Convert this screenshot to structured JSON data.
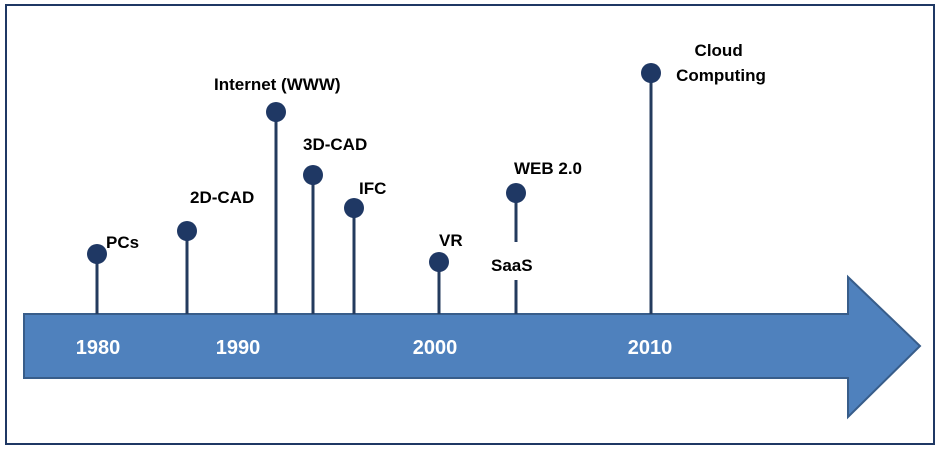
{
  "colors": {
    "arrow_fill": "#4f81bd",
    "arrow_stroke": "#385d8a",
    "marker": "#1f3864",
    "stem": "#243b5e",
    "frame": "#1f3864"
  },
  "years": [
    {
      "label": "1980",
      "value": 1980
    },
    {
      "label": "1990",
      "value": 1990
    },
    {
      "label": "2000",
      "value": 2000
    },
    {
      "label": "2010",
      "value": 2010
    }
  ],
  "events": [
    {
      "id": "pcs",
      "label": "PCs",
      "year": 1980
    },
    {
      "id": "2d-cad",
      "label": "2D-CAD",
      "year": 1984
    },
    {
      "id": "internet",
      "label": "Internet (WWW)",
      "year": 1988
    },
    {
      "id": "3d-cad",
      "label": "3D-CAD",
      "year": 1990
    },
    {
      "id": "ifc",
      "label": "IFC",
      "year": 1992
    },
    {
      "id": "vr",
      "label": "VR",
      "year": 2000
    },
    {
      "id": "web2",
      "label": "WEB 2.0",
      "year": 2004
    },
    {
      "id": "saas",
      "label": "SaaS",
      "year": 2004
    },
    {
      "id": "cloud",
      "label": [
        "Cloud",
        "Computing"
      ],
      "year": 2010
    }
  ]
}
